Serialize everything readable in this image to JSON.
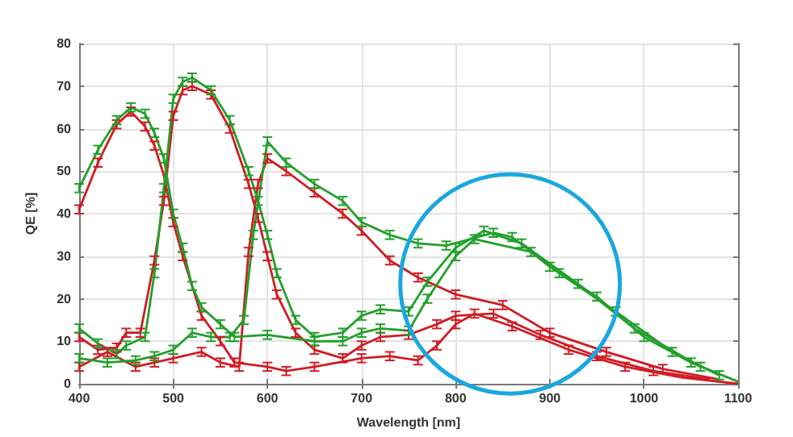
{
  "chart_data": {
    "type": "line",
    "xlabel": "Wavelength [nm]",
    "ylabel": "QE [%]",
    "xlim": [
      400,
      1100
    ],
    "xticks": [
      400,
      500,
      600,
      700,
      800,
      900,
      1000,
      1100
    ],
    "ylim": [
      0,
      80
    ],
    "yticks": [
      0,
      10,
      20,
      30,
      40,
      50,
      60,
      70,
      80
    ],
    "grid": true,
    "legend": false,
    "marker": "none",
    "line_style": "solid",
    "series": [
      {
        "color": "#d01c24",
        "x": [
          400,
          420,
          440,
          455,
          470,
          480,
          490,
          500,
          510,
          530,
          550,
          565,
          600,
          620,
          650,
          700,
          730,
          760,
          780,
          800,
          820,
          860,
          920,
          980,
          1040,
          1100
        ],
        "values": [
          41,
          52,
          61,
          64,
          60.5,
          56,
          49,
          38,
          30,
          16,
          10,
          5,
          4,
          3,
          4,
          6,
          6.5,
          5.5,
          9,
          14,
          16.5,
          13.5,
          8,
          4,
          1.5,
          0
        ],
        "errors": [
          1,
          1,
          1,
          1,
          1,
          1,
          null,
          1,
          1,
          1,
          1,
          1,
          1,
          1,
          1,
          1,
          1,
          1,
          1,
          1,
          1,
          1,
          1,
          1,
          null,
          null
        ]
      },
      {
        "color": "#d01c24",
        "x": [
          400,
          420,
          440,
          450,
          465,
          480,
          490,
          500,
          510,
          520,
          540,
          560,
          580,
          590,
          600,
          610,
          630,
          650,
          680,
          700,
          720,
          750,
          780,
          800,
          840,
          890,
          950,
          1010,
          1070
        ],
        "values": [
          11,
          8,
          8.5,
          12,
          12,
          29,
          43,
          63,
          69,
          70,
          68,
          60,
          47,
          39,
          30,
          21,
          12,
          8,
          6,
          9,
          11,
          11.5,
          14,
          16,
          16.5,
          11.5,
          6.5,
          3,
          1
        ],
        "errors": [
          1,
          1,
          1,
          1,
          1,
          1,
          1,
          1,
          1,
          1,
          1,
          1,
          1,
          1,
          1,
          1,
          1,
          1,
          1,
          1,
          1,
          1,
          1,
          1,
          1,
          1,
          1,
          1,
          null
        ]
      },
      {
        "color": "#d01c24",
        "x": [
          400,
          430,
          460,
          480,
          500,
          530,
          550,
          570,
          580,
          590,
          600,
          620,
          650,
          680,
          700,
          730,
          760,
          800,
          850,
          900,
          960,
          1020,
          1080
        ],
        "values": [
          4,
          7.5,
          4,
          5,
          6,
          7.5,
          5,
          4,
          31,
          47,
          53,
          50,
          45,
          40,
          36,
          29,
          25,
          21,
          18.5,
          12,
          7.5,
          3.5,
          1
        ],
        "errors": [
          1,
          1,
          1,
          1,
          1,
          1,
          1,
          1,
          1,
          1,
          1,
          1,
          1,
          1,
          1,
          1,
          1,
          1,
          1,
          1,
          1,
          1,
          null
        ]
      },
      {
        "color": "#22a02a",
        "x": [
          400,
          420,
          440,
          455,
          470,
          480,
          490,
          500,
          510,
          520,
          530,
          550,
          565,
          600,
          650,
          680,
          700,
          720,
          750,
          770,
          800,
          820,
          880,
          900,
          950,
          1000,
          1050,
          1100
        ],
        "values": [
          46,
          55,
          62,
          65,
          63.5,
          59,
          53,
          40,
          32,
          23,
          18,
          14,
          11,
          11.5,
          10,
          10,
          12,
          13,
          12.5,
          20,
          30,
          34,
          31,
          27.5,
          20.5,
          11,
          5,
          0.5
        ],
        "errors": [
          1,
          1,
          1,
          1,
          1,
          1,
          1,
          1,
          1,
          1,
          1,
          1,
          1,
          1,
          1,
          1,
          1,
          1,
          1,
          1,
          1,
          1,
          1,
          1,
          1,
          1,
          1,
          null
        ]
      },
      {
        "color": "#22a02a",
        "x": [
          400,
          420,
          440,
          450,
          470,
          480,
          490,
          500,
          510,
          520,
          540,
          560,
          580,
          590,
          600,
          610,
          630,
          650,
          680,
          700,
          720,
          750,
          770,
          800,
          830,
          870,
          930,
          990,
          1060
        ],
        "values": [
          13,
          9.5,
          7,
          9,
          11,
          26,
          46,
          67,
          71,
          72,
          69,
          62,
          50,
          43,
          35,
          26,
          15,
          11,
          12,
          16,
          17.5,
          17,
          24,
          32,
          36,
          33,
          23.5,
          13,
          4
        ],
        "errors": [
          1,
          1,
          1,
          1,
          1,
          1,
          1,
          1,
          1,
          1,
          1,
          1,
          1,
          1,
          1,
          1,
          1,
          1,
          1,
          1,
          1,
          1,
          1,
          1,
          1,
          1,
          1,
          1,
          1
        ]
      },
      {
        "color": "#22a02a",
        "x": [
          400,
          430,
          460,
          480,
          500,
          520,
          540,
          560,
          575,
          585,
          600,
          620,
          650,
          680,
          700,
          730,
          760,
          790,
          840,
          860,
          910,
          970,
          1030,
          1080
        ],
        "values": [
          6,
          5,
          5.5,
          6.5,
          8,
          12,
          11,
          11,
          15,
          35,
          57,
          52,
          47,
          43,
          38,
          35,
          33,
          32.5,
          35.5,
          34.5,
          26,
          17,
          7.5,
          2
        ],
        "errors": [
          1,
          1,
          1,
          1,
          1,
          1,
          1,
          1,
          1,
          1,
          1,
          1,
          1,
          1,
          1,
          1,
          1,
          1,
          1,
          1,
          1,
          1,
          1,
          1
        ]
      }
    ]
  }
}
